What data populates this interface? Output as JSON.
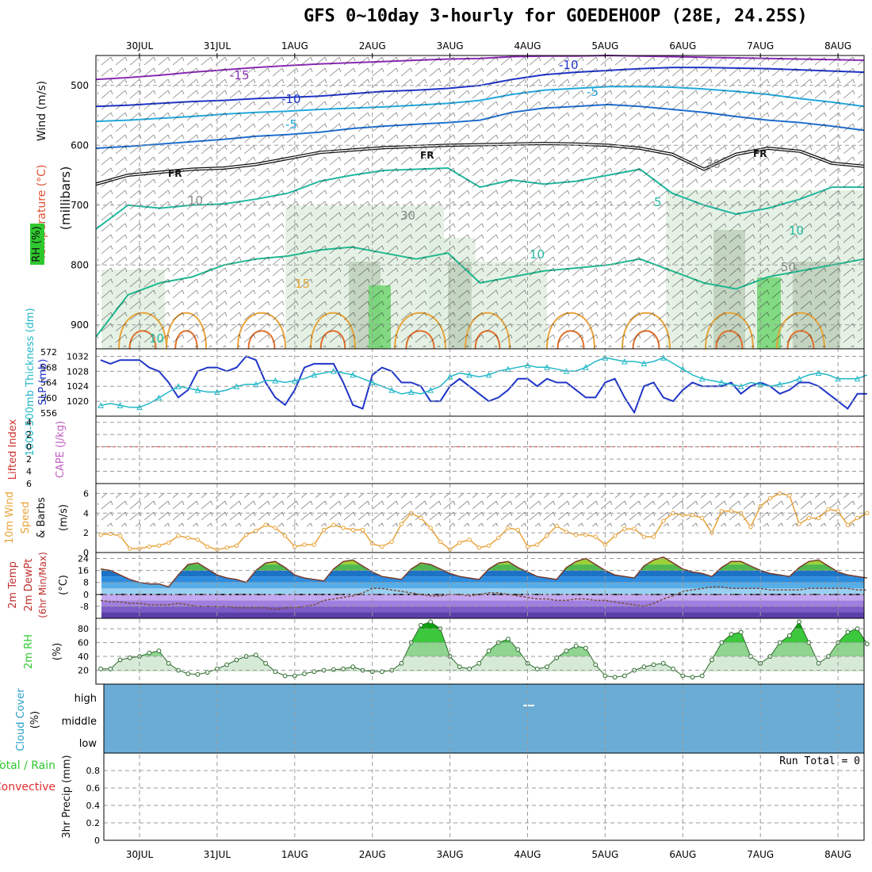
{
  "title": "GFS 0~10day 3-hourly for GOEDEHOOP (28E, 24.25S)",
  "colors": {
    "wind_speed": "#e8a33a",
    "thickness": "#22b8c8",
    "slp": "#1f35c8",
    "temp_fill": "#2d8de0",
    "rh_fill": "#22c422",
    "cloud": "#6aacd6",
    "lifted_index": "#d23030",
    "cape": "#c060c0"
  },
  "chart_data": {
    "type": "line",
    "days": [
      "30JUL",
      "31JUL",
      "1AUG",
      "2AUG",
      "3AUG",
      "4AUG",
      "5AUG",
      "6AUG",
      "7AUG",
      "8AUG"
    ],
    "panels": {
      "upper_air": {
        "labels": {
          "wind": "Wind (m/s)",
          "temperature": "Temperature (°C)",
          "rh": "RH (%)",
          "pressure": "(millibars)"
        },
        "y_ticks": [
          500,
          600,
          700,
          800,
          900
        ],
        "ylim": [
          940,
          450
        ],
        "contour_labels": [
          "-15",
          "-10",
          "-10",
          "-5",
          "-5",
          "FR",
          "FR",
          "FR",
          "5",
          "10",
          "10",
          "15",
          "10",
          "30",
          "30",
          "10",
          "50"
        ],
        "isotherms": [
          {
            "name": "-15",
            "p": [
              490,
              487,
              483,
              478,
              474,
              470,
              467,
              464,
              462,
              460,
              458,
              456,
              455,
              452,
              451,
              451,
              450,
              451,
              452,
              453,
              454,
              455,
              456,
              457,
              458
            ]
          },
          {
            "name": "-10",
            "p": [
              535,
              533,
              530,
              527,
              525,
              522,
              520,
              518,
              514,
              510,
              508,
              505,
              500,
              490,
              482,
              478,
              475,
              472,
              470,
              470,
              471,
              472,
              474,
              476,
              478
            ]
          },
          {
            "name": "-5",
            "p": [
              560,
              558,
              555,
              552,
              548,
              545,
              543,
              540,
              538,
              536,
              533,
              530,
              525,
              515,
              508,
              505,
              502,
              502,
              503,
              506,
              510,
              515,
              522,
              528,
              535
            ]
          },
          {
            "name": "0",
            "p": [
              605,
              602,
              598,
              594,
              590,
              585,
              582,
              578,
              572,
              568,
              565,
              562,
              558,
              545,
              538,
              535,
              532,
              535,
              540,
              545,
              552,
              558,
              562,
              568,
              575
            ]
          },
          {
            "name": "FR",
            "p": [
              665,
              650,
              645,
              640,
              638,
              632,
              622,
              612,
              608,
              604,
              602,
              600,
              599,
              598,
              597,
              598,
              600,
              605,
              615,
              640,
              615,
              605,
              610,
              630,
              635
            ]
          },
          {
            "name": "5",
            "p": [
              740,
              700,
              705,
              700,
              698,
              690,
              680,
              660,
              650,
              642,
              640,
              638,
              670,
              658,
              665,
              660,
              650,
              640,
              680,
              700,
              715,
              705,
              690,
              670,
              670
            ]
          },
          {
            "name": "10",
            "p": [
              920,
              850,
              830,
              820,
              800,
              790,
              785,
              775,
              770,
              780,
              790,
              780,
              830,
              820,
              810,
              805,
              800,
              790,
              810,
              830,
              840,
              820,
              810,
              800,
              790
            ]
          }
        ]
      },
      "thickness_slp": {
        "labels": {
          "thickness": "1000-500mb Thickness (dm)",
          "slp": "SLP (mb)"
        },
        "thickness_ticks": [
          556,
          560,
          564,
          568,
          572
        ],
        "slp_ticks": [
          1020,
          1024,
          1028,
          1032
        ],
        "thickness_range": [
          556,
          572
        ],
        "slp_range": [
          1016,
          1034
        ],
        "slp": [
          1031,
          1030,
          1031,
          1031,
          1031,
          1029,
          1028,
          1025,
          1021,
          1023,
          1028,
          1029,
          1029,
          1028,
          1029,
          1032,
          1031,
          1025,
          1021,
          1019,
          1023,
          1029,
          1030,
          1030,
          1030,
          1025,
          1019,
          1018,
          1027,
          1029,
          1028,
          1025,
          1025,
          1024,
          1020,
          1020,
          1024,
          1026,
          1024,
          1022,
          1020,
          1021,
          1023,
          1026,
          1026,
          1024,
          1026,
          1025,
          1025,
          1023,
          1021,
          1021,
          1025,
          1026,
          1021,
          1017,
          1024,
          1025,
          1021,
          1020,
          1023,
          1025,
          1024,
          1024,
          1024,
          1025,
          1022,
          1024,
          1025,
          1024,
          1022,
          1023,
          1025,
          1025,
          1024,
          1022,
          1020,
          1018,
          1022,
          1022
        ],
        "thickness": [
          558,
          558.5,
          558,
          557.5,
          557.5,
          558.5,
          560,
          561.5,
          563,
          562.5,
          562,
          561.5,
          561.5,
          562,
          563,
          563.5,
          563.5,
          564.5,
          564.5,
          564,
          564.5,
          565,
          566,
          566.5,
          567,
          566.5,
          566,
          565,
          564,
          563,
          562,
          561,
          561.5,
          561,
          562,
          563,
          565.5,
          566.5,
          566,
          565.5,
          566,
          567,
          567.5,
          568,
          568.5,
          568,
          568,
          567.5,
          567,
          567,
          568,
          569.5,
          570.5,
          570,
          569.5,
          569.5,
          569,
          569.5,
          570.5,
          569,
          567.5,
          566,
          565,
          564.5,
          564,
          563.5,
          563,
          564,
          563.5,
          563,
          563.5,
          564,
          565,
          566,
          566.5,
          566,
          565,
          565,
          565,
          566
        ]
      },
      "lifted_index_cape": {
        "labels": {
          "lifted_index": "Lifted Index",
          "cape": "CAPE (J/kg)"
        },
        "y_ticks": [
          -4,
          -2,
          0,
          2,
          4,
          6
        ],
        "tick_labels": [
          "4",
          "2",
          "0",
          "2",
          "4",
          "6"
        ],
        "ylim": [
          -5,
          6
        ],
        "lifted_index": []
      },
      "wind": {
        "labels": {
          "wind": "10m Wind",
          "speed": "Speed",
          "barbs": "& Barbs",
          "units": "(m/s)"
        },
        "y_ticks": [
          0,
          2,
          4,
          6
        ],
        "ylim": [
          0,
          7
        ],
        "speed": [
          1.8,
          1.9,
          1.7,
          0.4,
          0.4,
          0.6,
          0.7,
          1.0,
          1.7,
          1.5,
          1.3,
          0.6,
          0.3,
          0.5,
          0.7,
          1.8,
          2.2,
          2.8,
          2.5,
          1.7,
          0.6,
          0.8,
          0.8,
          2.3,
          2.8,
          2.5,
          2.3,
          2.3,
          0.9,
          0.6,
          1.1,
          2.9,
          4.0,
          3.5,
          2.5,
          1.1,
          0.3,
          1.0,
          1.3,
          0.5,
          0.7,
          1.5,
          2.5,
          2.3,
          0.6,
          0.8,
          1.7,
          2.7,
          2.1,
          1.8,
          1.8,
          1.6,
          0.8,
          1.7,
          2.4,
          2.4,
          1.6,
          1.6,
          3.2,
          4.0,
          3.8,
          3.8,
          3.5,
          2.0,
          4.2,
          4.2,
          4.0,
          2.6,
          4.7,
          5.5,
          6.0,
          5.8,
          2.9,
          3.5,
          3.5,
          4.4,
          4.2,
          2.8,
          3.5,
          4.0
        ]
      },
      "temperature": {
        "labels": {
          "temp": "2m Temp",
          "dewpt": "2m DewPt",
          "minmax": "(6hr Min/Max)",
          "units": "(°C)"
        },
        "y_ticks": [
          -8,
          0,
          8,
          16,
          24
        ],
        "ylim": [
          -16,
          28
        ],
        "temp": [
          17,
          16,
          13,
          10,
          8,
          7,
          7,
          5,
          13,
          20,
          21,
          17,
          13,
          11,
          10,
          8,
          16,
          21,
          22,
          18,
          13,
          11,
          10,
          9,
          17,
          22,
          23,
          19,
          15,
          12,
          11,
          10,
          17,
          21,
          20,
          17,
          14,
          12,
          11,
          10,
          17,
          21,
          22,
          18,
          15,
          12,
          11,
          10,
          18,
          22,
          24,
          20,
          16,
          13,
          12,
          11,
          19,
          23,
          25,
          21,
          17,
          15,
          14,
          12,
          18,
          22,
          22,
          19,
          16,
          14,
          13,
          12,
          18,
          22,
          23,
          19,
          15,
          13,
          12,
          11
        ],
        "dewpoint": [
          -4,
          -5,
          -5,
          -6,
          -6,
          -7,
          -7,
          -7,
          -6,
          -7,
          -8,
          -8,
          -8,
          -8,
          -9,
          -9,
          -9,
          -9,
          -10,
          -9,
          -9,
          -8,
          -7,
          -4,
          -3,
          -2,
          -1,
          1,
          4,
          4,
          3,
          2,
          1,
          0,
          -1,
          -1,
          0,
          0,
          -1,
          0,
          1,
          1,
          0,
          -1,
          -2,
          -3,
          -3,
          -4,
          -4,
          -3,
          -3,
          -4,
          -4,
          -5,
          -6,
          -7,
          -8,
          -6,
          -3,
          -1,
          2,
          3,
          4,
          5,
          5,
          4,
          4,
          4,
          4,
          3,
          3,
          3,
          3,
          4,
          4,
          4,
          4,
          4,
          3,
          3
        ]
      },
      "rh": {
        "labels": {
          "rh": "2m RH",
          "units": "(%)"
        },
        "y_ticks": [
          20,
          40,
          60,
          80
        ],
        "ylim": [
          0,
          95
        ],
        "rh": [
          22,
          22,
          35,
          38,
          40,
          45,
          48,
          30,
          20,
          15,
          14,
          17,
          22,
          28,
          35,
          40,
          42,
          30,
          18,
          12,
          12,
          15,
          18,
          20,
          21,
          22,
          25,
          20,
          18,
          18,
          20,
          30,
          60,
          85,
          90,
          80,
          40,
          25,
          22,
          30,
          48,
          60,
          65,
          50,
          30,
          22,
          25,
          38,
          48,
          55,
          52,
          28,
          12,
          10,
          12,
          20,
          25,
          28,
          30,
          22,
          12,
          10,
          12,
          35,
          60,
          72,
          75,
          40,
          30,
          40,
          60,
          70,
          90,
          60,
          30,
          40,
          60,
          75,
          80,
          58
        ]
      },
      "cloud": {
        "labels": {
          "cloud": "Cloud Cover",
          "units": "(%)"
        },
        "levels": [
          "high",
          "middle",
          "low"
        ]
      },
      "precip": {
        "labels": {
          "precip": "3hr Precip (mm)",
          "total": "Total / Rain",
          "convective": "Convective",
          "run_total": "Run Total = 0"
        },
        "y_ticks": [
          0,
          0.2,
          0.4,
          0.6,
          0.8
        ],
        "ylim": [
          0,
          1.0
        ],
        "values": []
      }
    }
  }
}
